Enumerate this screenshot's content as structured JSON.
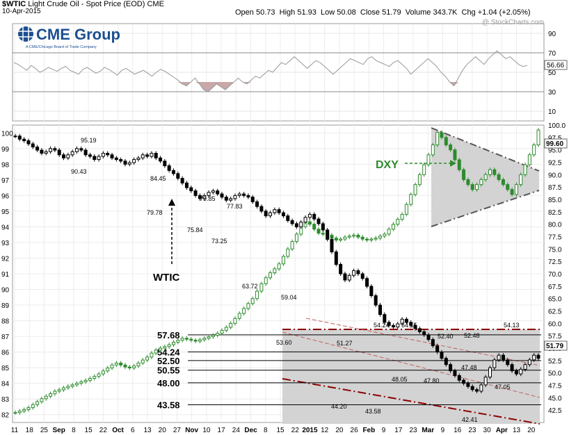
{
  "header": {
    "symbol": "$WTIC",
    "name": "Light Crude Oil - Spot Price (EOD)",
    "exchange": "CME",
    "date": "10-Apr-2015",
    "open_label": "Open",
    "open": "50.73",
    "high_label": "High",
    "high": "51.93",
    "low_label": "Low",
    "low": "50.08",
    "close_label": "Close",
    "close": "51.79",
    "volume_label": "Volume",
    "volume": "343.7K",
    "chg_label": "Chg",
    "chg": "+1.04 (+2.05%)",
    "copyright": "@ StockCharts.com"
  },
  "logo": {
    "text": "CME Group",
    "tagline": "A CME/Chicago Board of Trade Company"
  },
  "colors": {
    "wtic": "#000000",
    "dxy": "#2e8b2e",
    "wedge_fill": "#d3d3d3",
    "channel_line": "#8b0000",
    "rsi_shade": "#c8a8a8",
    "grid": "#e6e6e6"
  },
  "chart_data": [
    {
      "type": "line",
      "panel": "indicator",
      "y_ticks": [
        "10",
        "30",
        "50",
        "70",
        "90"
      ],
      "ylim": [
        0,
        100
      ],
      "last_value": "56.66",
      "series": [
        {
          "values": [
            60,
            58,
            55,
            52,
            57,
            54,
            50,
            52,
            55,
            53,
            51,
            54,
            56,
            52,
            50,
            48,
            53,
            55,
            52,
            49,
            51,
            55,
            53,
            50,
            47,
            52,
            54,
            51,
            48,
            50,
            52,
            49,
            46,
            50,
            53,
            51,
            48,
            45,
            42,
            38,
            36,
            40,
            44,
            38,
            32,
            30,
            34,
            38,
            35,
            32,
            36,
            40,
            44,
            40,
            38,
            42,
            46,
            44,
            48,
            52,
            50,
            55,
            60,
            58,
            62,
            66,
            62,
            58,
            54,
            58,
            62,
            60,
            56,
            52,
            48,
            52,
            56,
            60,
            64,
            62,
            60,
            58,
            64,
            66,
            62,
            60,
            58,
            56,
            60,
            62,
            58,
            54,
            48,
            52,
            56,
            60,
            64,
            60,
            56,
            50,
            46,
            40,
            36,
            44,
            52,
            58,
            62,
            66,
            62,
            58,
            64,
            68,
            72,
            68,
            64,
            66,
            62,
            58,
            56,
            57
          ]
        }
      ]
    },
    {
      "type": "candlestick",
      "panel": "price",
      "x_tick_labels": [
        "11",
        "18",
        "25",
        "Sep",
        "8",
        "15",
        "22",
        "Oct",
        "6",
        "13",
        "20",
        "27",
        "Nov",
        "10",
        "17",
        "24",
        "Dec",
        "8",
        "15",
        "22",
        "2015",
        "12",
        "20",
        "26",
        "Feb",
        "9",
        "17",
        "23",
        "Mar",
        "9",
        "16",
        "23",
        "30",
        "Apr",
        "13",
        "20"
      ],
      "wtic_axis_ticks": [
        "82",
        "83",
        "84",
        "85",
        "86",
        "87",
        "88",
        "89",
        "90",
        "91",
        "92",
        "93",
        "94",
        "95",
        "96",
        "97",
        "98",
        "99",
        "100"
      ],
      "dxy_axis_ticks": [
        "42.5",
        "45.0",
        "47.5",
        "50.0",
        "52.5",
        "55.0",
        "57.5",
        "60.0",
        "62.5",
        "65.0",
        "67.5",
        "70.0",
        "72.5",
        "75.0",
        "77.5",
        "80.0",
        "82.5",
        "85.0",
        "87.5",
        "90.0",
        "92.5",
        "95.0",
        "97.5",
        "100.0"
      ],
      "wtic_range": [
        81.5,
        100.5
      ],
      "dxy_range": [
        40,
        100
      ],
      "wtic_last": "99.60",
      "dxy_last": "51.79",
      "series": [
        {
          "name": "WTIC",
          "values": [
            99.8,
            99.6,
            99.5,
            99.3,
            99.1,
            98.9,
            98.7,
            98.8,
            99.0,
            98.9,
            98.6,
            98.4,
            98.6,
            98.8,
            99.0,
            98.9,
            98.6,
            98.5,
            98.3,
            98.5,
            98.7,
            98.6,
            98.4,
            98.3,
            98.2,
            98.0,
            98.1,
            98.3,
            98.4,
            98.6,
            98.5,
            98.7,
            98.4,
            98.2,
            97.9,
            97.6,
            97.4,
            97.1,
            96.8,
            96.5,
            96.3,
            96.0,
            95.8,
            96.0,
            96.2,
            96.3,
            96.1,
            95.9,
            95.7,
            95.8,
            96.0,
            96.1,
            96.0,
            95.9,
            95.6,
            95.3,
            95.0,
            94.7,
            94.9,
            95.1,
            94.9,
            94.7,
            94.4,
            94.2,
            94.0,
            94.3,
            94.6,
            94.8,
            94.5,
            94.2,
            93.8,
            93.2,
            92.4,
            91.6,
            91.0,
            90.6,
            90.9,
            91.2,
            91.0,
            90.7,
            90.2,
            89.6,
            89.0,
            88.4,
            87.9,
            87.7,
            87.6,
            87.8,
            88.1,
            87.9,
            87.7,
            87.5,
            87.3,
            87.1,
            86.8,
            86.4,
            86.0,
            85.6,
            85.2,
            84.8,
            84.5,
            84.2,
            84.0,
            83.8,
            83.6,
            83.5,
            83.9,
            84.4,
            85.0,
            85.5,
            85.8,
            85.5,
            85.2,
            84.8,
            84.6,
            84.9,
            85.2,
            85.5,
            85.8,
            85.6
          ]
        },
        {
          "name": "DXY",
          "values": [
            42.0,
            42.3,
            42.6,
            43.0,
            43.6,
            44.2,
            44.8,
            45.3,
            45.8,
            46.3,
            46.6,
            47.0,
            47.3,
            47.6,
            47.9,
            48.2,
            48.5,
            48.9,
            49.3,
            49.8,
            50.4,
            51.0,
            51.6,
            52.0,
            51.6,
            51.2,
            51.0,
            51.4,
            52.0,
            52.6,
            53.2,
            54.0,
            54.6,
            55.0,
            55.3,
            55.7,
            56.2,
            56.6,
            57.0,
            56.8,
            56.6,
            56.4,
            56.7,
            57.0,
            57.3,
            57.6,
            58.0,
            58.6,
            59.2,
            60.0,
            61.0,
            62.0,
            63.0,
            64.0,
            65.0,
            66.5,
            68.0,
            69.2,
            70.2,
            71.0,
            72.0,
            73.5,
            75.0,
            76.5,
            78.0,
            79.5,
            80.5,
            80.0,
            79.0,
            78.2,
            78.0,
            77.8,
            77.2,
            76.8,
            77.0,
            77.4,
            77.6,
            77.8,
            77.4,
            77.0,
            76.8,
            77.0,
            77.2,
            77.6,
            78.0,
            79.0,
            80.0,
            81.0,
            82.0,
            84.0,
            86.0,
            88.0,
            90.0,
            92.0,
            94.0,
            96.0,
            98.5,
            97.5,
            96.0,
            95.0,
            93.0,
            91.0,
            89.0,
            88.0,
            87.0,
            88.0,
            89.0,
            90.0,
            91.0,
            90.0,
            89.0,
            88.0,
            87.0,
            86.0,
            88.0,
            90.0,
            92.0,
            94.0,
            96.0,
            99.0
          ]
        }
      ],
      "annotations": [
        "95.19",
        "90.43",
        "84.45",
        "79.78",
        "79.85",
        "75.84",
        "77.83",
        "73.25",
        "63.72",
        "59.04",
        "53.60",
        "51.27",
        "54.24",
        "54.15",
        "52.40",
        "52.48",
        "54.13",
        "48.05",
        "47.80",
        "47.48",
        "47.05",
        "44.20",
        "43.58",
        "42.41"
      ],
      "arrow_labels": [
        "WTIC",
        "DXY"
      ],
      "level_labels": [
        "57.68",
        "54.24",
        "52.50",
        "50.55",
        "48.00",
        "43.58"
      ]
    }
  ]
}
